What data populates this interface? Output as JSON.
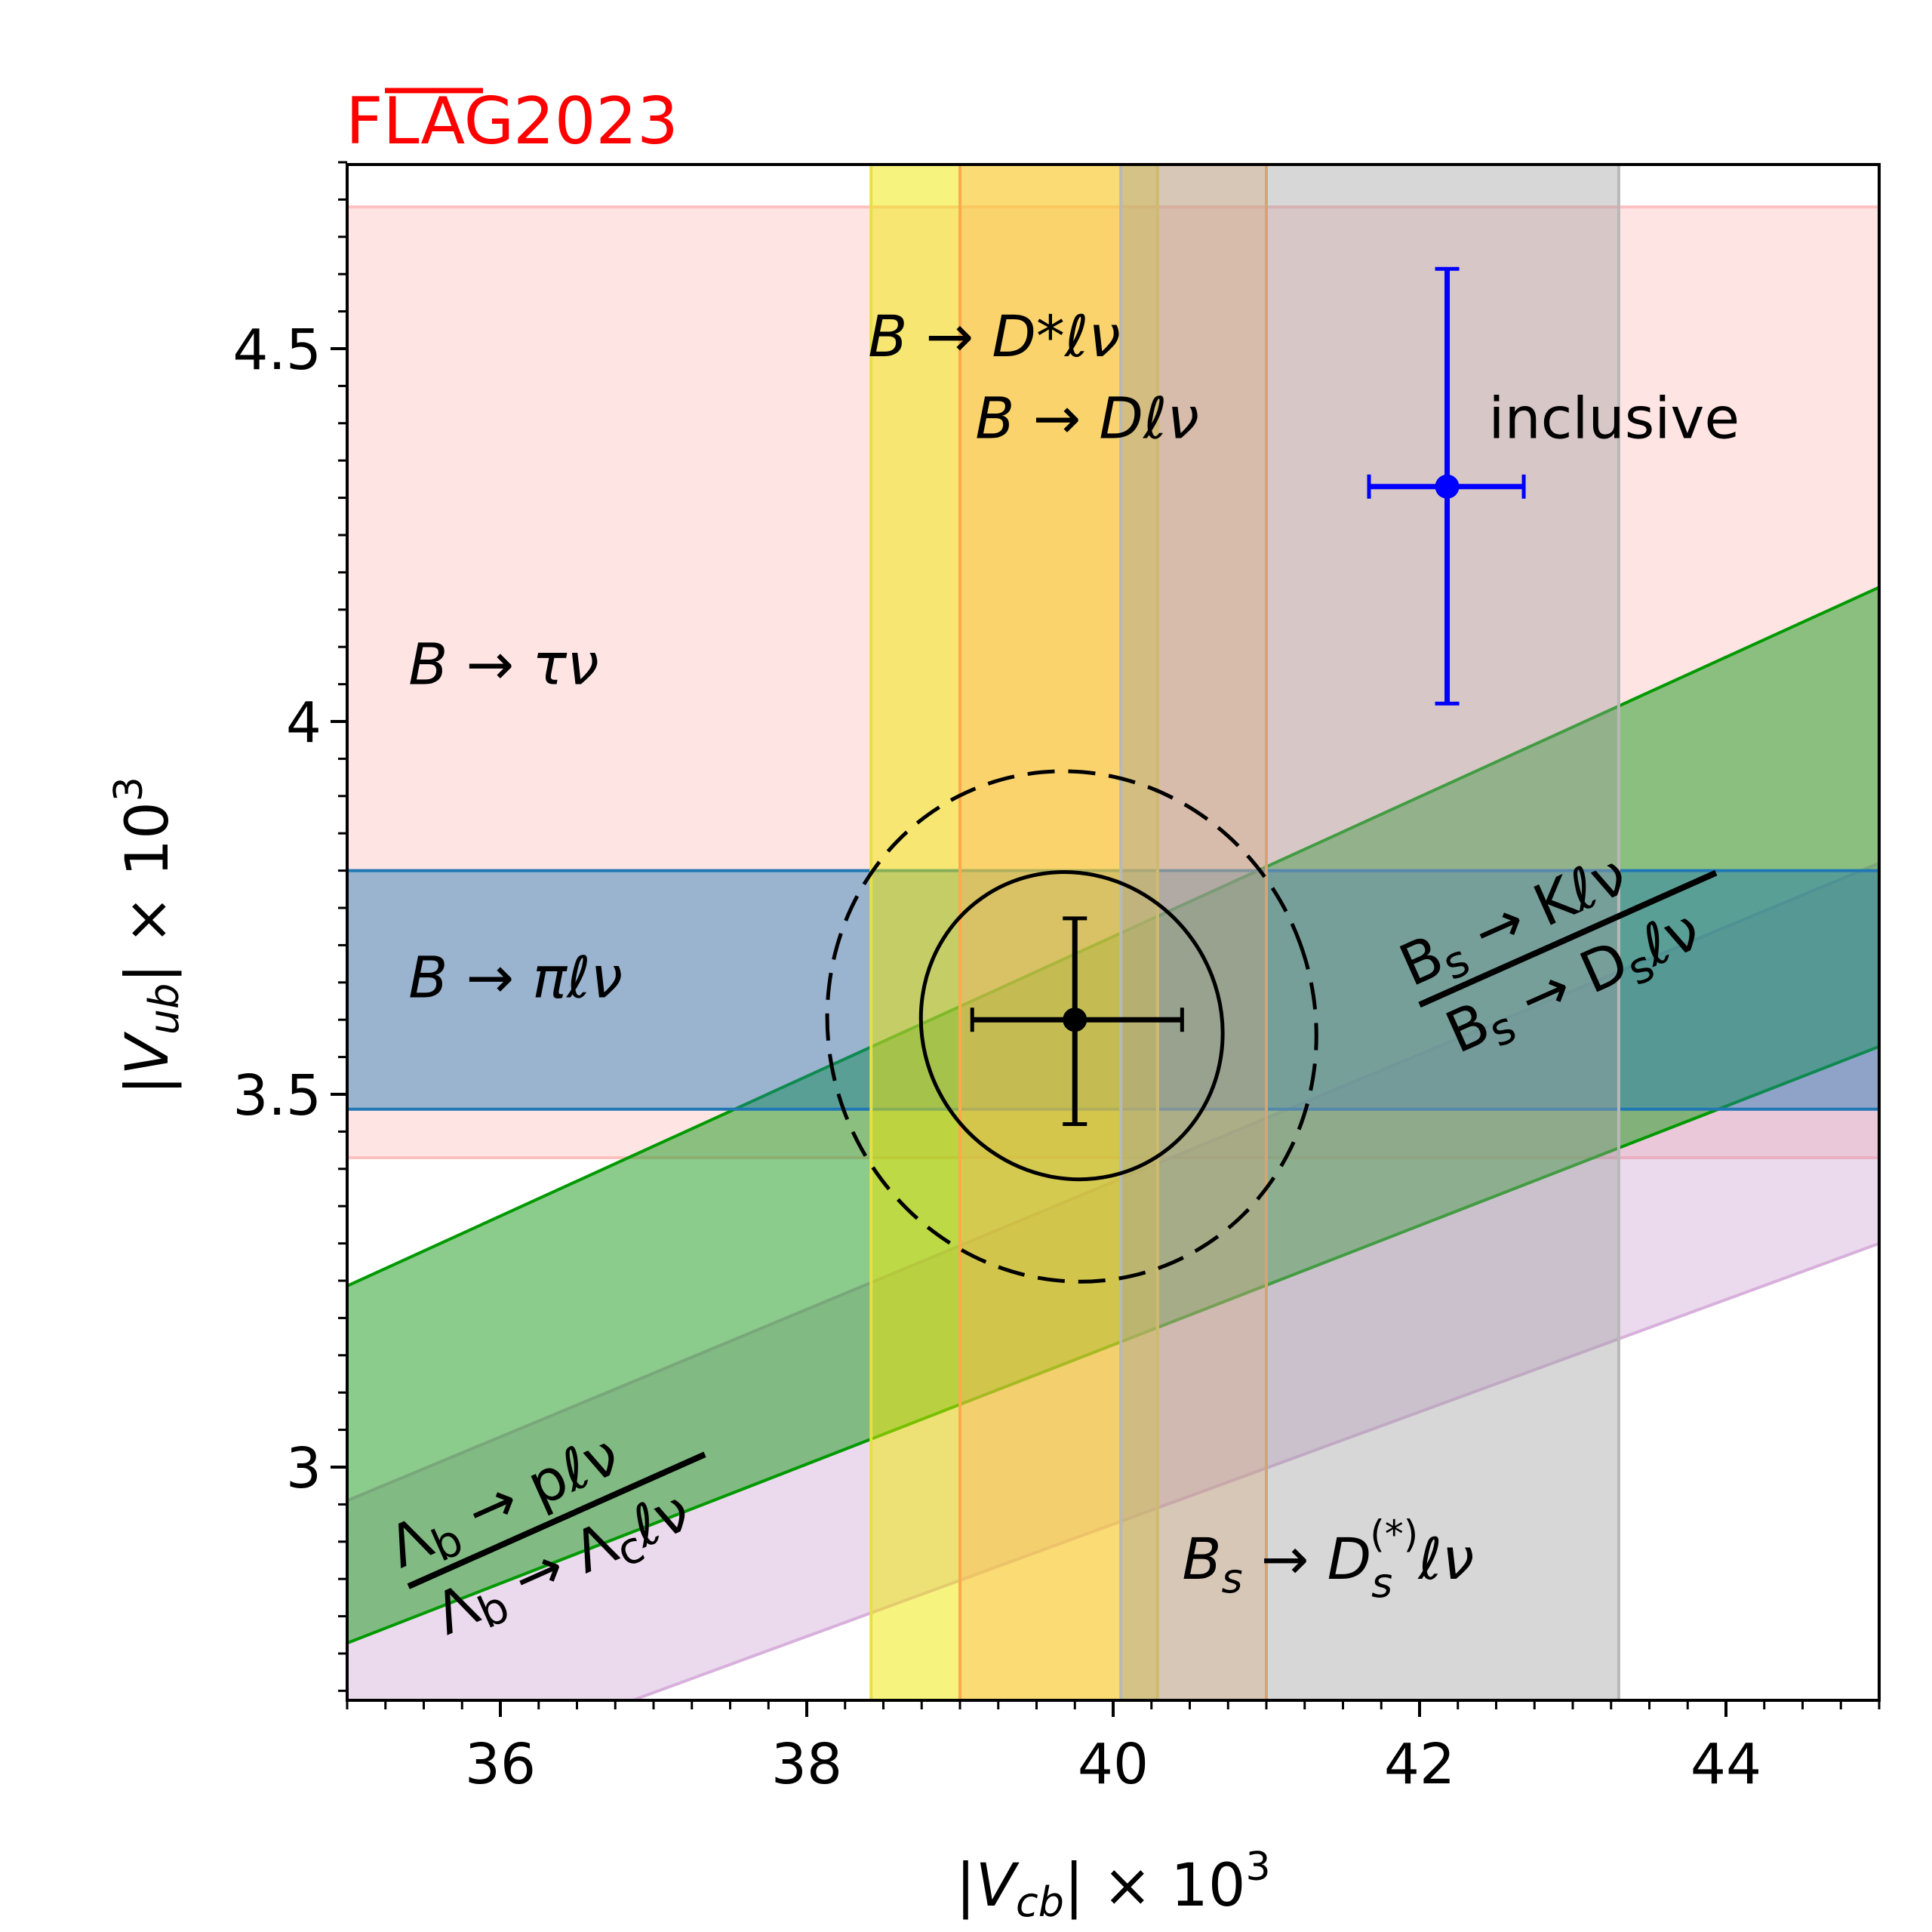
{
  "brand": {
    "prefix": "FLAG",
    "year": "2023",
    "color": "#ff0000"
  },
  "chart_data": {
    "type": "scatter",
    "title": "FLAG 2023",
    "xlabel": "|V_cb| × 10^3",
    "ylabel": "|V_ub| × 10^3",
    "xlim": [
      35,
      45
    ],
    "ylim": [
      2.69,
      4.75
    ],
    "xticks": [
      36,
      38,
      40,
      42,
      44
    ],
    "xtick_labels": [
      "36",
      "38",
      "40",
      "42",
      "44"
    ],
    "xminor_step": 0.25,
    "yticks": [
      3.0,
      3.5,
      4.0,
      4.5
    ],
    "ytick_labels": [
      "3",
      "3.5",
      "4",
      "4.5"
    ],
    "yminor_step": 0.05,
    "grid": false,
    "horizontal_bands": [
      {
        "name": "B → τν",
        "ymin": 3.415,
        "ymax": 4.69,
        "fill": "#ffb3b3",
        "alpha": 0.35,
        "edge": "#ffc0c0"
      },
      {
        "name": "B → πℓν",
        "ymin": 3.48,
        "ymax": 3.8,
        "fill": "#1f77b4",
        "alpha": 0.45,
        "edge": "#1f77b4"
      }
    ],
    "vertical_bands": [
      {
        "name": "B → D*ℓν",
        "xmin": 38.42,
        "xmax": 40.29,
        "fill": "#f0e800",
        "alpha": 0.5,
        "edge": "#e8e040"
      },
      {
        "name": "B → Dℓν",
        "xmin": 39.0,
        "xmax": 41.0,
        "fill": "#ffb060",
        "alpha": 0.35,
        "edge": "#ffa84c"
      },
      {
        "name": "B_s → D_s^(*)ℓν",
        "xmin": 40.05,
        "xmax": 43.3,
        "fill": "#a0a0a0",
        "alpha": 0.42,
        "edge": "#b8b8b8"
      }
    ],
    "sloped_bands": [
      {
        "name": "B_s → Kℓν / B_s → D_sℓν",
        "x": [
          35,
          45
        ],
        "upper": [
          3.243,
          4.18
        ],
        "lower": [
          2.764,
          3.564
        ],
        "fill": "#2ca02c",
        "alpha": 0.55,
        "edge": "#009900"
      },
      {
        "name": "Λ_b → pℓν / Λ_b → Λ_cℓν",
        "x": [
          35,
          45
        ],
        "upper": [
          2.955,
          3.81
        ],
        "lower": [
          2.547,
          3.3
        ],
        "fill": "#c08cc8",
        "alpha": 0.32,
        "edge": "#d8b0dc"
      }
    ],
    "points": [
      {
        "name": "inclusive",
        "x": 42.18,
        "y": 4.315,
        "xerr": [
          41.67,
          42.68
        ],
        "yerr": [
          4.024,
          4.607
        ],
        "color": "#0000ff"
      },
      {
        "name": "fit",
        "x": 39.75,
        "y": 3.6,
        "xerr": [
          39.08,
          40.45
        ],
        "yerr": [
          3.46,
          3.736
        ],
        "color": "#000000"
      }
    ],
    "ellipses": [
      {
        "name": "fit-1sigma",
        "cx": 39.73,
        "cy": 3.592,
        "xmin": 38.69,
        "xmax": 40.77,
        "ymin": 3.376,
        "ymax": 3.808,
        "tilt_deg": -35,
        "style": "solid"
      },
      {
        "name": "fit-2sigma",
        "cx": 39.73,
        "cy": 3.591,
        "xmin": 38.02,
        "xmax": 41.43,
        "ymin": 3.236,
        "ymax": 3.946,
        "tilt_deg": -20,
        "style": "dashed"
      }
    ],
    "annotations": [
      {
        "id": "tau",
        "text": "B → τν",
        "x": 35.4,
        "y": 4.05
      },
      {
        "id": "pi",
        "text": "B → πℓν",
        "x": 35.4,
        "y": 3.63
      },
      {
        "id": "dstar",
        "text": "B → D*ℓν",
        "x": 38.4,
        "y": 4.49
      },
      {
        "id": "d",
        "text": "B → Dℓν",
        "x": 39.1,
        "y": 4.38
      },
      {
        "id": "inclusive",
        "text": "inclusive",
        "x": 42.45,
        "y": 4.38
      },
      {
        "id": "bsds",
        "text": "B_s → D_s^(*)ℓν",
        "x": 40.45,
        "y": 2.85
      },
      {
        "id": "bsk",
        "num": "B_s → Kℓν",
        "den": "B_s → D_sℓν",
        "x": 42.0,
        "y": 3.62,
        "rotation_deg": -24
      },
      {
        "id": "lambda",
        "num": "Λ_b → pℓν",
        "den": "Λ_b → Λ_cℓν",
        "x": 35.4,
        "y": 2.84,
        "rotation_deg": -24
      }
    ]
  }
}
